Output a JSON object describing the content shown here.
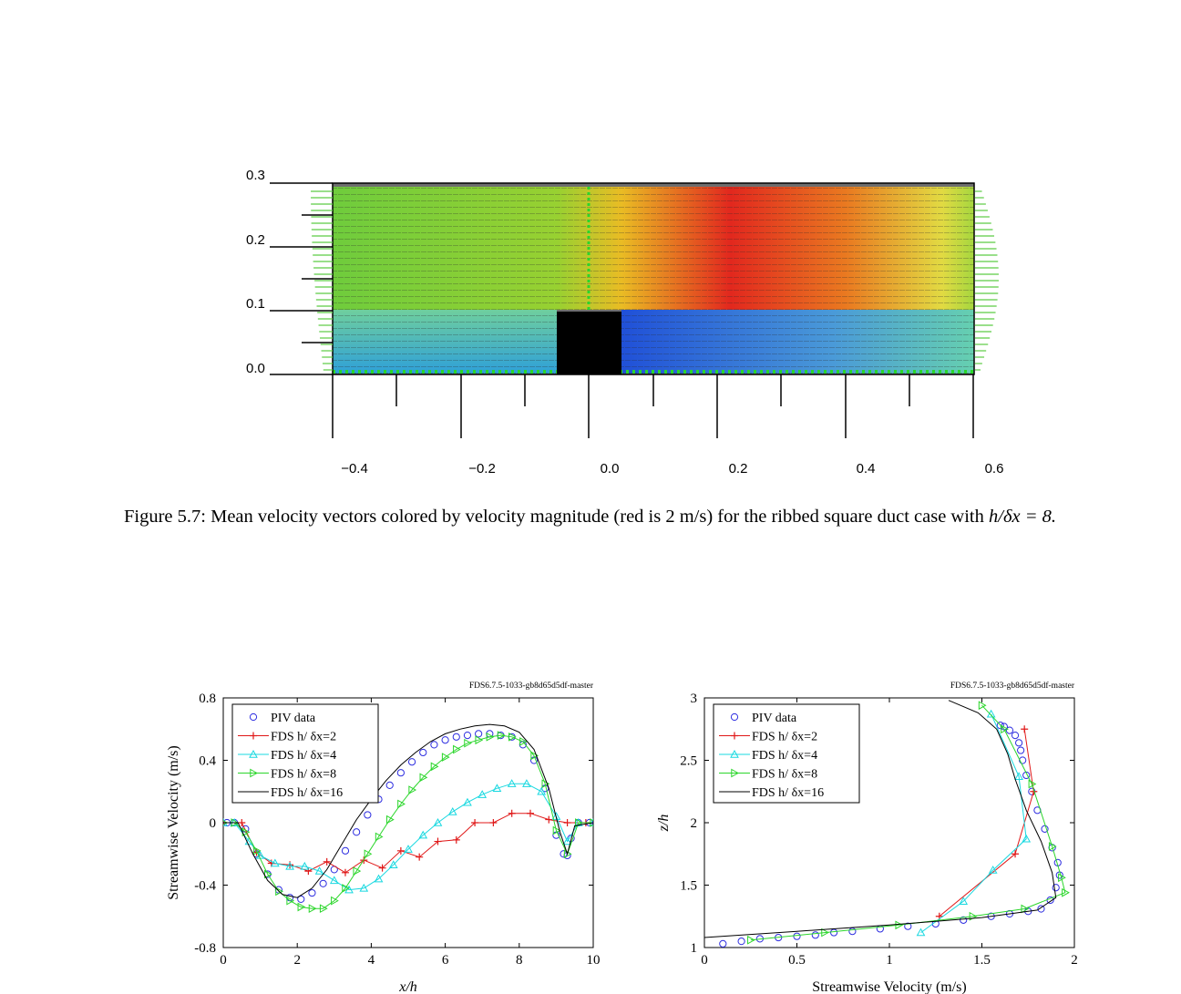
{
  "figure_top": {
    "colors": {
      "field_bg": "#6e6e6e",
      "rib": "#000000",
      "fast": "#e8241a",
      "slow": "#1f5fd6"
    },
    "y_ticks": [
      "0.3",
      "0.2",
      "0.1",
      "0.0"
    ],
    "x_ticks": [
      "−0.4",
      "−0.2",
      "0.0",
      "0.2",
      "0.4",
      "0.6"
    ]
  },
  "caption": {
    "label": "Figure 5.7:",
    "text": "Mean velocity vectors colored by velocity magnitude (red is 2 m/s) for the ribbed square duct case with",
    "math": "h/δx = 8."
  },
  "chart_data": [
    {
      "type": "line",
      "header": "FDS6.7.5-1033-gb8d65d5df-master",
      "xlabel": "x/h",
      "ylabel": "Streamwise Velocity (m/s)",
      "xlim": [
        0,
        10
      ],
      "ylim": [
        -0.8,
        0.8
      ],
      "x_ticks": [
        "0",
        "2",
        "4",
        "6",
        "8",
        "10"
      ],
      "y_ticks": [
        "0.8",
        "0.4",
        "0",
        "-0.4",
        "-0.8"
      ],
      "legend_position": "top-left",
      "series": [
        {
          "name": "PIV data",
          "color": "#2d2de0",
          "marker": "circle",
          "x": [
            0.1,
            0.3,
            0.6,
            0.9,
            1.2,
            1.5,
            1.8,
            2.1,
            2.4,
            2.7,
            3.0,
            3.3,
            3.6,
            3.9,
            4.2,
            4.5,
            4.8,
            5.1,
            5.4,
            5.7,
            6.0,
            6.3,
            6.6,
            6.9,
            7.2,
            7.5,
            7.8,
            8.1,
            8.4,
            8.7,
            9.0,
            9.2,
            9.3,
            9.4,
            9.6,
            9.9
          ],
          "y": [
            0.0,
            0.0,
            -0.04,
            -0.2,
            -0.33,
            -0.43,
            -0.48,
            -0.49,
            -0.45,
            -0.39,
            -0.3,
            -0.18,
            -0.06,
            0.05,
            0.15,
            0.24,
            0.32,
            0.39,
            0.45,
            0.5,
            0.53,
            0.55,
            0.56,
            0.57,
            0.57,
            0.56,
            0.55,
            0.5,
            0.4,
            0.22,
            -0.08,
            -0.2,
            -0.21,
            -0.1,
            0.0,
            0.0
          ]
        },
        {
          "name": "FDS  h/ δx=2",
          "color": "#e01818",
          "marker": "plus",
          "x": [
            0.0,
            0.5,
            0.9,
            1.3,
            1.8,
            2.3,
            2.8,
            3.3,
            3.8,
            4.3,
            4.8,
            5.3,
            5.8,
            6.3,
            6.8,
            7.3,
            7.8,
            8.3,
            8.8,
            9.3,
            9.8
          ],
          "y": [
            0.0,
            0.0,
            -0.19,
            -0.26,
            -0.27,
            -0.31,
            -0.25,
            -0.32,
            -0.24,
            -0.29,
            -0.18,
            -0.22,
            -0.12,
            -0.11,
            0.0,
            0.0,
            0.06,
            0.06,
            0.02,
            0.0,
            0.0
          ]
        },
        {
          "name": "FDS  h/ δx=4",
          "color": "#18d8e0",
          "marker": "triangle",
          "x": [
            0.0,
            0.3,
            0.7,
            1.0,
            1.4,
            1.8,
            2.2,
            2.6,
            3.0,
            3.4,
            3.8,
            4.2,
            4.6,
            5.0,
            5.4,
            5.8,
            6.2,
            6.6,
            7.0,
            7.4,
            7.8,
            8.2,
            8.6,
            9.0,
            9.3,
            9.6,
            10.0
          ],
          "y": [
            0.0,
            0.0,
            -0.12,
            -0.21,
            -0.26,
            -0.28,
            -0.28,
            -0.31,
            -0.37,
            -0.43,
            -0.42,
            -0.36,
            -0.27,
            -0.17,
            -0.08,
            0.0,
            0.07,
            0.13,
            0.18,
            0.22,
            0.25,
            0.25,
            0.2,
            0.04,
            -0.12,
            0.0,
            0.0
          ]
        },
        {
          "name": "FDS  h/ δx=8",
          "color": "#2bd62b",
          "marker": "triangle-right",
          "x": [
            0.0,
            0.3,
            0.6,
            0.9,
            1.2,
            1.5,
            1.8,
            2.1,
            2.4,
            2.7,
            3.0,
            3.3,
            3.6,
            3.9,
            4.2,
            4.5,
            4.8,
            5.1,
            5.4,
            5.7,
            6.0,
            6.3,
            6.6,
            6.9,
            7.2,
            7.5,
            7.8,
            8.1,
            8.4,
            8.7,
            9.0,
            9.3,
            9.6,
            10.0
          ],
          "y": [
            0.0,
            0.0,
            -0.06,
            -0.18,
            -0.33,
            -0.44,
            -0.5,
            -0.54,
            -0.55,
            -0.55,
            -0.5,
            -0.42,
            -0.31,
            -0.2,
            -0.09,
            0.02,
            0.12,
            0.21,
            0.29,
            0.36,
            0.42,
            0.47,
            0.51,
            0.53,
            0.55,
            0.56,
            0.55,
            0.52,
            0.43,
            0.25,
            -0.05,
            -0.2,
            0.0,
            0.0
          ]
        },
        {
          "name": "FDS  h/ δx=16",
          "color": "#000000",
          "marker": "none",
          "x": [
            0.0,
            0.4,
            0.8,
            1.2,
            1.6,
            2.0,
            2.4,
            2.8,
            3.2,
            3.6,
            4.0,
            4.4,
            4.8,
            5.2,
            5.6,
            6.0,
            6.4,
            6.8,
            7.2,
            7.6,
            8.0,
            8.4,
            8.8,
            9.1,
            9.3,
            9.5,
            10.0
          ],
          "y": [
            0.0,
            0.0,
            -0.2,
            -0.37,
            -0.46,
            -0.48,
            -0.42,
            -0.3,
            -0.14,
            0.02,
            0.15,
            0.27,
            0.37,
            0.45,
            0.52,
            0.57,
            0.6,
            0.62,
            0.63,
            0.62,
            0.58,
            0.47,
            0.22,
            -0.06,
            -0.2,
            -0.02,
            0.0
          ]
        }
      ]
    },
    {
      "type": "line",
      "header": "FDS6.7.5-1033-gb8d65d5df-master",
      "xlabel": "Streamwise Velocity (m/s)",
      "ylabel": "z/h",
      "xlim": [
        0,
        2
      ],
      "ylim": [
        1,
        3
      ],
      "x_ticks": [
        "0",
        "0.5",
        "1",
        "1.5",
        "2"
      ],
      "y_ticks": [
        "3",
        "2.5",
        "2",
        "1.5",
        "1"
      ],
      "legend_position": "top-left",
      "series": [
        {
          "name": "PIV data",
          "color": "#2d2de0",
          "marker": "circle",
          "x": [
            0.1,
            0.2,
            0.3,
            0.4,
            0.5,
            0.6,
            0.7,
            0.8,
            0.95,
            1.1,
            1.25,
            1.4,
            1.55,
            1.65,
            1.75,
            1.82,
            1.87,
            1.9,
            1.92,
            1.91,
            1.88,
            1.84,
            1.8,
            1.77,
            1.74,
            1.72,
            1.71,
            1.7,
            1.68,
            1.65,
            1.62,
            1.6
          ],
          "y": [
            1.03,
            1.05,
            1.07,
            1.08,
            1.09,
            1.1,
            1.12,
            1.13,
            1.15,
            1.17,
            1.19,
            1.22,
            1.25,
            1.27,
            1.29,
            1.31,
            1.38,
            1.48,
            1.58,
            1.68,
            1.8,
            1.95,
            2.1,
            2.25,
            2.38,
            2.5,
            2.58,
            2.64,
            2.7,
            2.74,
            2.77,
            2.78
          ]
        },
        {
          "name": "FDS  h/ δx=2",
          "color": "#e01818",
          "marker": "plus",
          "x": [
            1.27,
            1.68,
            1.78,
            1.73
          ],
          "y": [
            1.25,
            1.75,
            2.25,
            2.75
          ]
        },
        {
          "name": "FDS  h/ δx=4",
          "color": "#18d8e0",
          "marker": "triangle",
          "x": [
            1.17,
            1.4,
            1.56,
            1.74,
            1.7,
            1.55
          ],
          "y": [
            1.12,
            1.37,
            1.62,
            1.87,
            2.37,
            2.87
          ]
        },
        {
          "name": "FDS  h/ δx=8",
          "color": "#2bd62b",
          "marker": "triangle-right",
          "x": [
            0.25,
            0.65,
            1.05,
            1.45,
            1.73,
            1.95,
            1.93,
            1.88,
            1.77,
            1.62,
            1.5
          ],
          "y": [
            1.06,
            1.12,
            1.18,
            1.25,
            1.31,
            1.44,
            1.56,
            1.81,
            2.31,
            2.75,
            2.94
          ]
        },
        {
          "name": "FDS  h/ δx=16",
          "color": "#000000",
          "marker": "none",
          "x": [
            0.0,
            0.5,
            1.0,
            1.5,
            1.8,
            1.9,
            1.88,
            1.82,
            1.74,
            1.68,
            1.64,
            1.58,
            1.48,
            1.32
          ],
          "y": [
            1.08,
            1.13,
            1.18,
            1.24,
            1.3,
            1.4,
            1.6,
            1.85,
            2.1,
            2.35,
            2.55,
            2.75,
            2.88,
            2.98
          ]
        }
      ]
    }
  ]
}
